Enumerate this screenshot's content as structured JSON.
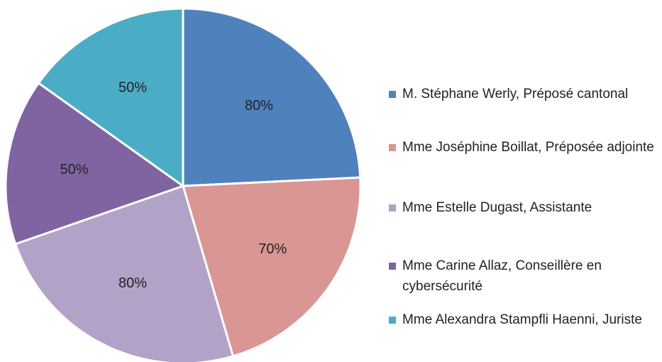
{
  "chart_data": {
    "type": "pie",
    "categories": [
      "M. Stéphane Werly, Préposé cantonal",
      "Mme Joséphine Boillat, Préposée adjointe",
      "Mme Estelle Dugast, Assistante",
      "Mme Carine Allaz, Conseillère en cybersécurité",
      "Mme Alexandra Stampfli Haenni, Juriste"
    ],
    "values": [
      80,
      70,
      80,
      50,
      50
    ],
    "value_labels": [
      "80%",
      "70%",
      "80%",
      "50%",
      "50%"
    ],
    "colors": [
      "#4f81bd",
      "#d99694",
      "#b3a2c7",
      "#8064a2",
      "#4bacc6"
    ],
    "legend": "right"
  }
}
